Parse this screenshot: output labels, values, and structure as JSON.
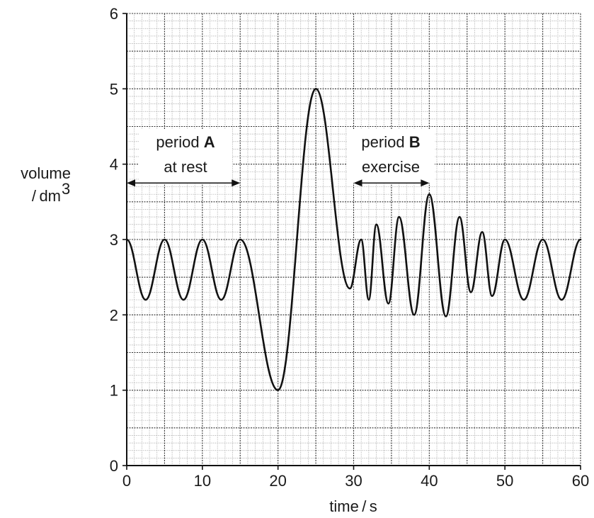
{
  "chart_data": {
    "type": "line",
    "xlabel": "time / s",
    "ylabel_line1": "volume",
    "ylabel_line2": "/ dm",
    "ylabel_sup": "3",
    "xlim": [
      0,
      60
    ],
    "ylim": [
      0,
      6
    ],
    "x_ticks": [
      "0",
      "10",
      "20",
      "30",
      "40",
      "50",
      "60"
    ],
    "y_ticks": [
      "0",
      "1",
      "2",
      "3",
      "4",
      "5",
      "6"
    ],
    "grid": true,
    "annotations": {
      "period_a": {
        "label": "period",
        "letter": "A",
        "sub": "at rest",
        "x_start": 0,
        "x_end": 15,
        "y": 3.75
      },
      "period_b": {
        "label": "period",
        "letter": "B",
        "sub": "exercise",
        "x_start": 30,
        "x_end": 40,
        "y": 3.75
      }
    },
    "series": [
      {
        "points": [
          [
            0,
            3.0
          ],
          [
            2.5,
            2.2
          ],
          [
            5,
            3.0
          ],
          [
            7.5,
            2.2
          ],
          [
            10,
            3.0
          ],
          [
            12.5,
            2.2
          ],
          [
            15,
            3.0
          ],
          [
            20,
            1.0
          ],
          [
            25,
            5.0
          ],
          [
            29.5,
            2.35
          ],
          [
            31,
            3.0
          ],
          [
            32,
            2.2
          ],
          [
            33,
            3.2
          ],
          [
            34.6,
            2.15
          ],
          [
            36,
            3.3
          ],
          [
            38,
            2.0
          ],
          [
            40,
            3.6
          ],
          [
            42.2,
            1.98
          ],
          [
            44,
            3.3
          ],
          [
            45.5,
            2.3
          ],
          [
            47,
            3.1
          ],
          [
            48.3,
            2.25
          ],
          [
            50,
            3.0
          ],
          [
            52.5,
            2.2
          ],
          [
            55,
            3.0
          ],
          [
            57.5,
            2.2
          ],
          [
            60,
            3.0
          ]
        ]
      }
    ]
  }
}
